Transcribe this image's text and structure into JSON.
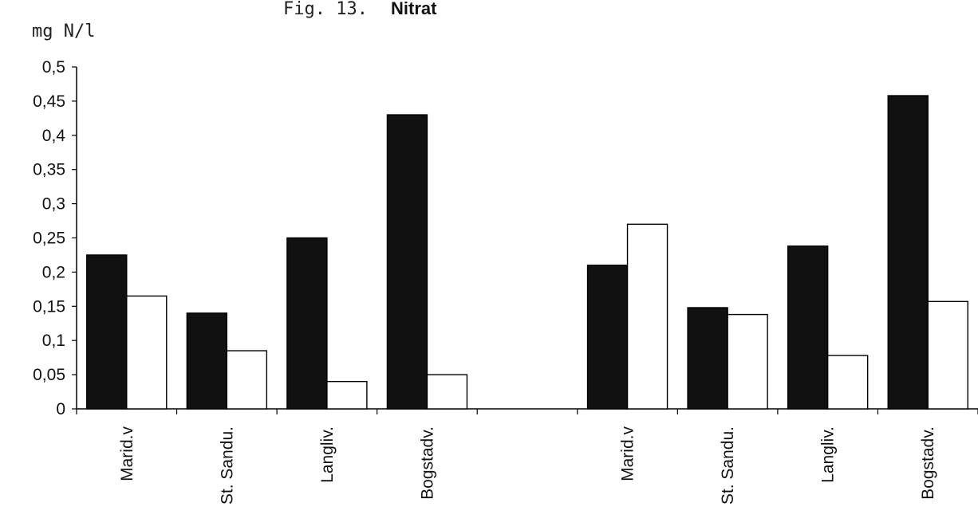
{
  "figure_label": "Fig. 13.",
  "chart_data": {
    "type": "bar",
    "title": "Nitrat",
    "ylabel": "mg N/l",
    "xlabel": "",
    "ylim": [
      0,
      0.5
    ],
    "yticks": [
      "0",
      "0,05",
      "0,1",
      "0,15",
      "0,2",
      "0,25",
      "0,3",
      "0,35",
      "0,4",
      "0,45",
      "0,5"
    ],
    "grid": false,
    "legend": "none",
    "groups": [
      {
        "category": "Marid.v",
        "values": [
          0.225,
          0.165
        ]
      },
      {
        "category": "St. Sandu.",
        "values": [
          0.14,
          0.085
        ]
      },
      {
        "category": "Langliv.",
        "values": [
          0.25,
          0.04
        ]
      },
      {
        "category": "Bogstadv.",
        "values": [
          0.43,
          0.05
        ]
      },
      {
        "category": "",
        "values": [
          null,
          null
        ]
      },
      {
        "category": "Marid.v",
        "values": [
          0.21,
          0.27
        ]
      },
      {
        "category": "St. Sandu.",
        "values": [
          0.148,
          0.138
        ]
      },
      {
        "category": "Langliv.",
        "values": [
          0.238,
          0.078
        ]
      },
      {
        "category": "Bogstadv.",
        "values": [
          0.458,
          0.157
        ]
      }
    ],
    "series_colors": [
      "#111111",
      "#ffffff"
    ]
  }
}
